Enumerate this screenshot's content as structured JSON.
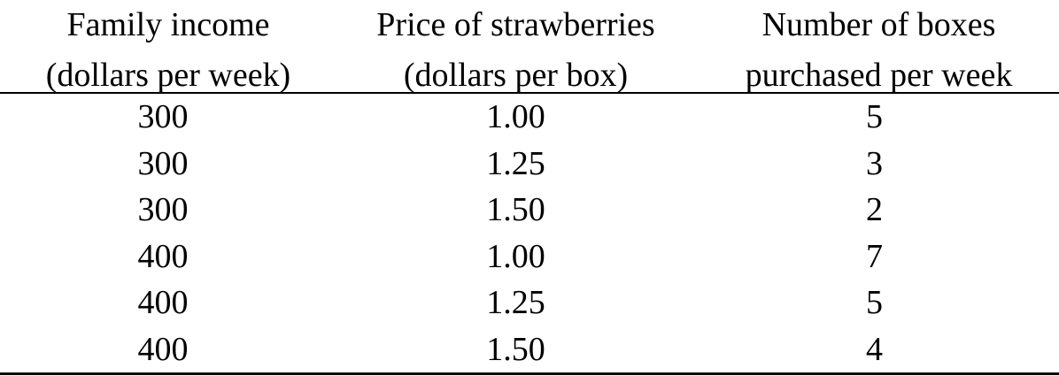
{
  "table": {
    "headers": [
      [
        "Family income",
        "(dollars per week)"
      ],
      [
        "Price of strawberries",
        "(dollars per box)"
      ],
      [
        "Number of boxes",
        "purchased per week"
      ]
    ],
    "rows": [
      [
        "300",
        "1.00",
        "5"
      ],
      [
        "300",
        "1.25",
        "3"
      ],
      [
        "300",
        "1.50",
        "2"
      ],
      [
        "400",
        "1.00",
        "7"
      ],
      [
        "400",
        "1.25",
        "5"
      ],
      [
        "400",
        "1.50",
        "4"
      ]
    ]
  }
}
